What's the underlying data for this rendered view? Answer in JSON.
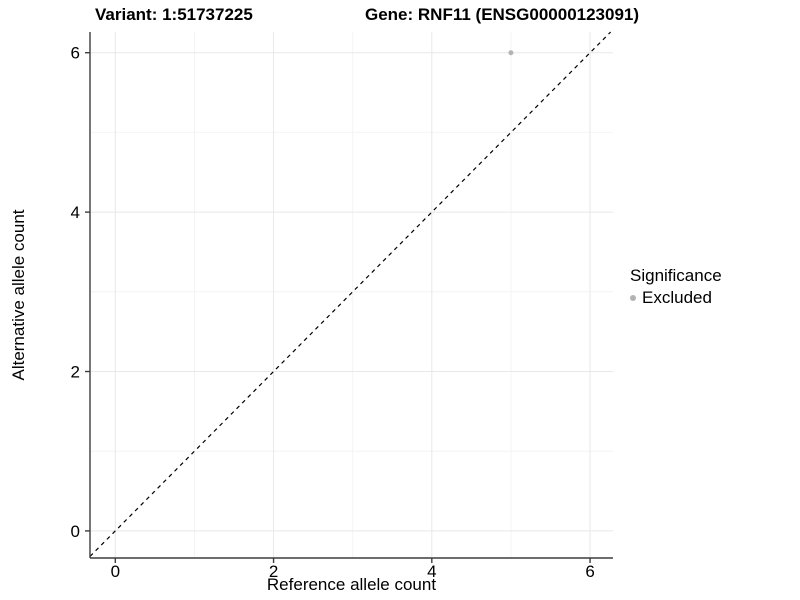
{
  "colors": {
    "background": "#ffffff",
    "grid_major": "#e8e8e8",
    "grid_minor": "#f4f4f4",
    "axis_line": "#3d3d3d",
    "tick": "#3d3d3d",
    "text": "#000000",
    "identity_line": "#000000",
    "point": "#b3b3b3"
  },
  "chart_data": {
    "type": "scatter",
    "title_left": "Variant: 1:51737225",
    "title_right": "Gene: RNF11 (ENSG00000123091)",
    "xlabel": "Reference allele count",
    "ylabel": "Alternative allele count",
    "xlim": [
      -0.32,
      6.29
    ],
    "ylim": [
      -0.34,
      6.26
    ],
    "x_major_ticks": [
      0,
      2,
      4,
      6
    ],
    "y_major_ticks": [
      0,
      2,
      4,
      6
    ],
    "x_minor_ticks": [
      1,
      3,
      5
    ],
    "y_minor_ticks": [
      1,
      3,
      5
    ],
    "grid": true,
    "reference_line": {
      "kind": "identity",
      "slope": 1,
      "intercept": 0,
      "style": "dashed"
    },
    "series": [
      {
        "name": "Excluded",
        "color": "#b3b3b3",
        "points": [
          {
            "x": 5,
            "y": 6
          }
        ]
      }
    ],
    "legend": {
      "title": "Significance",
      "position": "right",
      "entries": [
        {
          "label": "Excluded",
          "color": "#b3b3b3"
        }
      ]
    }
  }
}
